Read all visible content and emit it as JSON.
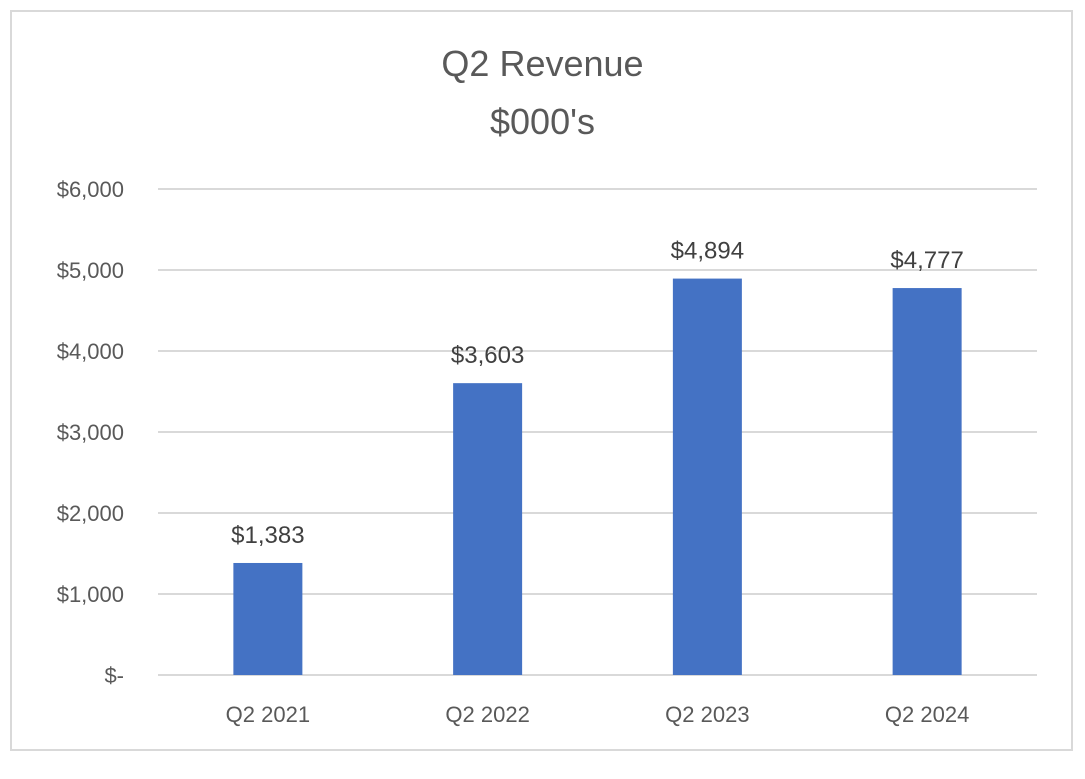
{
  "chart_data": {
    "type": "bar",
    "title": "Q2 Revenue",
    "subtitle": "$000's",
    "xlabel": "",
    "ylabel": "",
    "categories": [
      "Q2 2021",
      "Q2 2022",
      "Q2 2023",
      "Q2 2024"
    ],
    "values": [
      1383,
      3603,
      4894,
      4777
    ],
    "data_labels": [
      "$1,383",
      "$3,603",
      "$4,894",
      "$4,777"
    ],
    "ylim": [
      0,
      6000
    ],
    "yticks": [
      0,
      1000,
      2000,
      3000,
      4000,
      5000,
      6000
    ],
    "ytick_labels": [
      "$-",
      "$1,000",
      "$2,000",
      "$3,000",
      "$4,000",
      "$5,000",
      "$6,000"
    ],
    "grid": true,
    "legend": "none",
    "bar_color": "#4472c4",
    "grid_color": "#d9d9d9"
  }
}
